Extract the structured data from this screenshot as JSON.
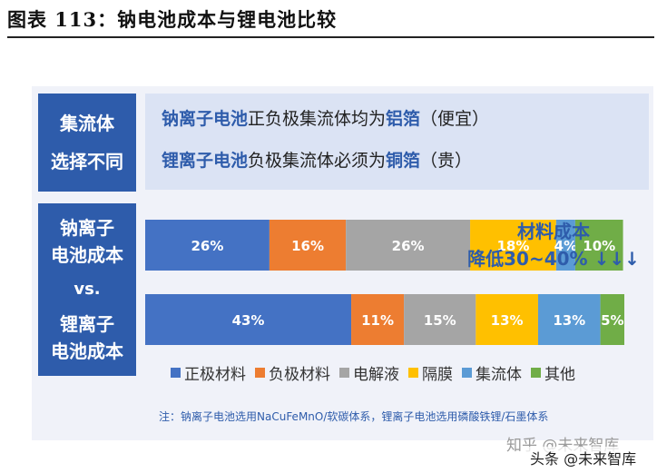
{
  "header": {
    "title": "图表 113：钠电池成本与锂电池比较"
  },
  "collector": {
    "label_line1": "集流体",
    "label_line2": "选择不同",
    "line1": {
      "highlight1": "钠离子电池",
      "text1": "正负极集流体均为",
      "highlight2": "铝箔",
      "text2": "（便宜）"
    },
    "line2": {
      "highlight1": "锂离子电池",
      "text1": "负极集流体必须为",
      "highlight2": "铜箔",
      "text2": "（贵）"
    }
  },
  "compare_label": {
    "line1": "钠离子",
    "line2": "电池成本",
    "vs": "vs.",
    "line3": "锂离子",
    "line4": "电池成本"
  },
  "annotation": {
    "line1": "材料成本",
    "line2": "降低30~40% ↓↓↓"
  },
  "note": "注：钠离子电池选用NaCuFeMnO/软碳体系，锂离子电池选用磷酸铁锂/石墨体系",
  "watermark": {
    "line1": "知乎 @未来智库",
    "line2": "头条 @未来智库"
  },
  "chart_data": {
    "type": "bar",
    "orientation": "horizontal",
    "stacked": true,
    "categories": [
      "钠离子电池成本",
      "锂离子电池成本"
    ],
    "series": [
      {
        "name": "正极材料",
        "color": "#4472c4",
        "values": [
          26,
          43
        ],
        "labels": [
          "26%",
          "43%"
        ]
      },
      {
        "name": "负极材料",
        "color": "#ed7d31",
        "values": [
          16,
          11
        ],
        "labels": [
          "16%",
          "11%"
        ]
      },
      {
        "name": "电解液",
        "color": "#a5a5a5",
        "values": [
          26,
          15
        ],
        "labels": [
          "26%",
          "15%"
        ]
      },
      {
        "name": "隔膜",
        "color": "#ffc000",
        "values": [
          18,
          13
        ],
        "labels": [
          "18%",
          "13%"
        ]
      },
      {
        "name": "集流体",
        "color": "#5b9bd5",
        "values": [
          4,
          13
        ],
        "labels": [
          "4%",
          "13%"
        ]
      },
      {
        "name": "其他",
        "color": "#70ad47",
        "values": [
          10,
          5
        ],
        "labels": [
          "10%",
          "5%"
        ]
      }
    ],
    "legend_position": "bottom",
    "grid": false
  }
}
